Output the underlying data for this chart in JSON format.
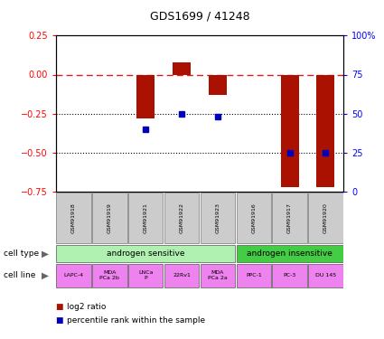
{
  "title": "GDS1699 / 41248",
  "samples": [
    "GSM91918",
    "GSM91919",
    "GSM91921",
    "GSM91922",
    "GSM91923",
    "GSM91916",
    "GSM91917",
    "GSM91920"
  ],
  "log2_ratio": [
    0.0,
    0.0,
    -0.28,
    0.08,
    -0.13,
    0.0,
    -0.72,
    -0.72
  ],
  "percentile_rank_pct": [
    null,
    null,
    40,
    50,
    48,
    null,
    25,
    25
  ],
  "cell_type_groups": [
    {
      "label": "androgen sensitive",
      "start": 0,
      "end": 5,
      "color": "#b0f0b0"
    },
    {
      "label": "androgen insensitive",
      "start": 5,
      "end": 8,
      "color": "#44cc44"
    }
  ],
  "cell_lines": [
    "LAPC-4",
    "MDA\nPCa 2b",
    "LNCa\nP",
    "22Rv1",
    "MDA\nPCa 2a",
    "PPC-1",
    "PC-3",
    "DU 145"
  ],
  "cell_line_color": "#ee82ee",
  "gsm_bg_color": "#cccccc",
  "bar_color": "#aa1100",
  "dot_color": "#0000bb",
  "ref_line_color": "#cc2222",
  "ylim_left": [
    -0.75,
    0.25
  ],
  "ylim_right": [
    0,
    100
  ],
  "yticks_left": [
    0.25,
    0,
    -0.25,
    -0.5,
    -0.75
  ],
  "yticks_right": [
    100,
    75,
    50,
    25,
    0
  ],
  "dotted_lines": [
    -0.25,
    -0.5
  ],
  "legend_items": [
    {
      "label": "log2 ratio",
      "color": "#aa1100"
    },
    {
      "label": "percentile rank within the sample",
      "color": "#0000bb"
    }
  ]
}
